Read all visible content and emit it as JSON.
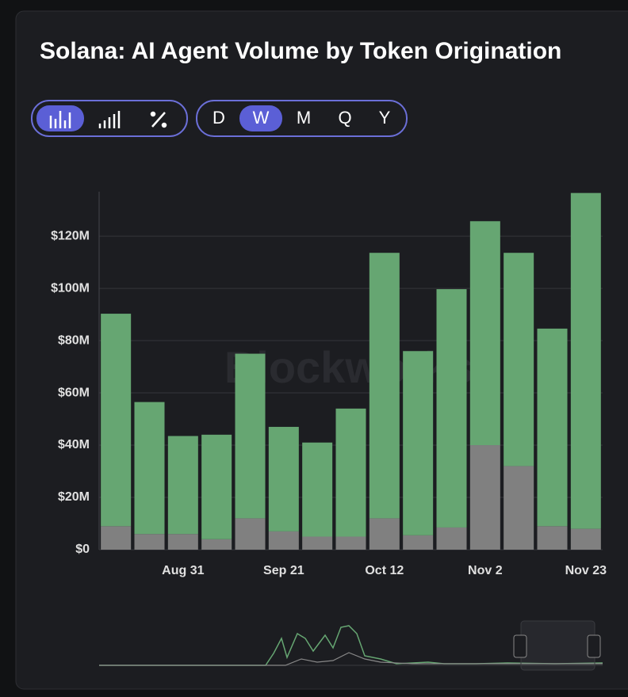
{
  "toolbar": {
    "periods": [
      "D",
      "W",
      "M",
      "Q",
      "Y"
    ]
  },
  "watermark": "Blockworks",
  "chart_data": {
    "type": "stacked_bar",
    "title": "Solana: AI Agent Volume by Token Origination",
    "categories": [
      null,
      null,
      "Aug 31",
      null,
      null,
      "Sep 21",
      null,
      null,
      "Oct 12",
      null,
      null,
      "Nov 2",
      null,
      null,
      "Nov 23"
    ],
    "series": [
      {
        "color": "#808080",
        "values": [
          9,
          6,
          6,
          4,
          12,
          7,
          5,
          5,
          12,
          5.5,
          8.5,
          40,
          32,
          9,
          8
        ]
      },
      {
        "color": "#66a672",
        "values": [
          81.3,
          50.5,
          37.5,
          40,
          63,
          40,
          36,
          49,
          101.6,
          70.5,
          91.2,
          85.7,
          81.6,
          75.6,
          128.5
        ]
      }
    ],
    "ylim": [
      0,
      137
    ],
    "yticks": [
      {
        "value": 0,
        "label": "$0"
      },
      {
        "value": 20,
        "label": "$20M"
      },
      {
        "value": 40,
        "label": "$40M"
      },
      {
        "value": 60,
        "label": "$60M"
      },
      {
        "value": 80,
        "label": "$80M"
      },
      {
        "value": 100,
        "label": "$100M"
      },
      {
        "value": 120,
        "label": "$120M"
      }
    ],
    "grid": true
  }
}
